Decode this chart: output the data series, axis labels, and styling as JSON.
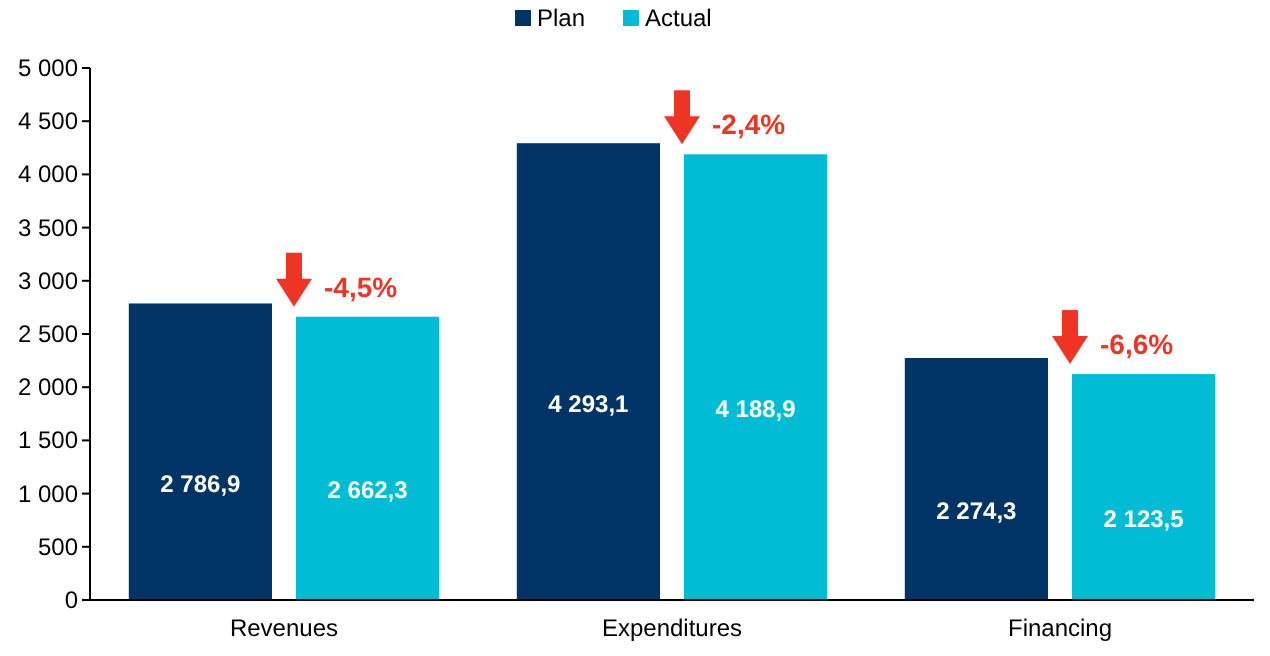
{
  "chart_data": {
    "type": "bar",
    "categories": [
      "Revenues",
      "Expenditures",
      "Financing"
    ],
    "series": [
      {
        "name": "Plan",
        "color": "#003366",
        "values": [
          2786.9,
          4293.1,
          2274.3
        ],
        "value_labels": [
          "2 786,9",
          "4 293,1",
          "2 274,3"
        ]
      },
      {
        "name": "Actual",
        "color": "#00bcd4",
        "values": [
          2662.3,
          4188.9,
          2123.5
        ],
        "value_labels": [
          "2 662,3",
          "4 188,9",
          "2 123,5"
        ]
      }
    ],
    "annotations": [
      "-4,5%",
      "-2,4%",
      "-6,6%"
    ],
    "ylim": [
      0,
      5000
    ],
    "yticks": [
      0,
      500,
      {
        "value": 1000,
        "label": "1 000"
      },
      {
        "value": 1500,
        "label": "1 500"
      },
      {
        "value": 2000,
        "label": "2 000"
      },
      {
        "value": 2500,
        "label": "2 500"
      },
      {
        "value": 3000,
        "label": "3 000"
      },
      {
        "value": 3500,
        "label": "3 500"
      },
      {
        "value": 4000,
        "label": "4 000"
      },
      {
        "value": 4500,
        "label": "4 500"
      },
      {
        "value": 5000,
        "label": "5 000"
      }
    ],
    "grid": false,
    "legend": "top"
  }
}
